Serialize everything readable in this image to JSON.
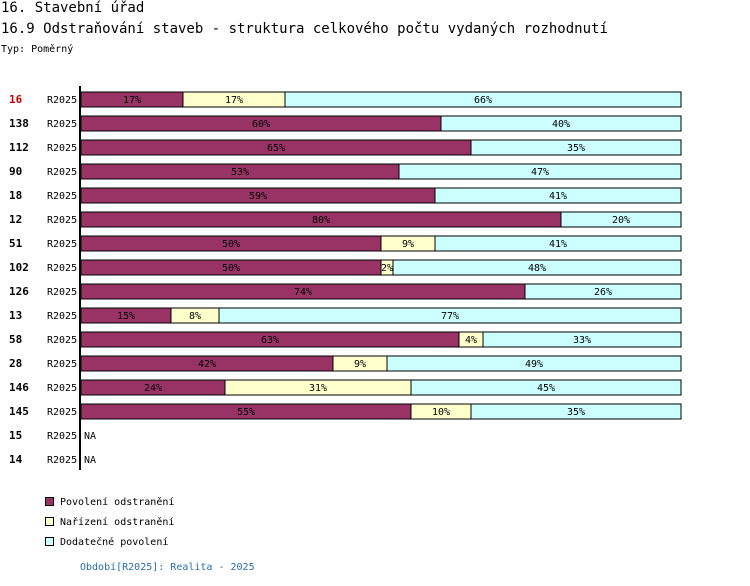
{
  "header": {
    "title": "16. Stavební úřad",
    "subtitle": "16.9 Odstraňování staveb - struktura celkového počtu vydaných rozhodnutí",
    "type_label": "Typ: Poměrný"
  },
  "colors": {
    "povoleni": "#993366",
    "narizeni": "#ffffcc",
    "dodatecne": "#ccffff",
    "highlight": "#cc0000",
    "footer": "#2a6db0"
  },
  "chart_data": {
    "type": "bar",
    "orientation": "horizontal",
    "stacked": true,
    "normalized_percent": true,
    "series_names": [
      "Povolení odstranění",
      "Nařízení odstranění",
      "Dodatečné povolení"
    ],
    "rows": [
      {
        "label": "16",
        "period": "R2025",
        "highlight": true,
        "values": [
          17,
          17,
          66
        ]
      },
      {
        "label": "138",
        "period": "R2025",
        "highlight": false,
        "values": [
          60,
          0,
          40
        ]
      },
      {
        "label": "112",
        "period": "R2025",
        "highlight": false,
        "values": [
          65,
          0,
          35
        ]
      },
      {
        "label": "90",
        "period": "R2025",
        "highlight": false,
        "values": [
          53,
          0,
          47
        ]
      },
      {
        "label": "18",
        "period": "R2025",
        "highlight": false,
        "values": [
          59,
          0,
          41
        ]
      },
      {
        "label": "12",
        "period": "R2025",
        "highlight": false,
        "values": [
          80,
          0,
          20
        ]
      },
      {
        "label": "51",
        "period": "R2025",
        "highlight": false,
        "values": [
          50,
          9,
          41
        ]
      },
      {
        "label": "102",
        "period": "R2025",
        "highlight": false,
        "values": [
          50,
          2,
          48
        ]
      },
      {
        "label": "126",
        "period": "R2025",
        "highlight": false,
        "values": [
          74,
          0,
          26
        ]
      },
      {
        "label": "13",
        "period": "R2025",
        "highlight": false,
        "values": [
          15,
          8,
          77
        ]
      },
      {
        "label": "58",
        "period": "R2025",
        "highlight": false,
        "values": [
          63,
          4,
          33
        ]
      },
      {
        "label": "28",
        "period": "R2025",
        "highlight": false,
        "values": [
          42,
          9,
          49
        ]
      },
      {
        "label": "146",
        "period": "R2025",
        "highlight": false,
        "values": [
          24,
          31,
          45
        ]
      },
      {
        "label": "145",
        "period": "R2025",
        "highlight": false,
        "values": [
          55,
          10,
          35
        ]
      },
      {
        "label": "15",
        "period": "R2025",
        "highlight": false,
        "values": null
      },
      {
        "label": "14",
        "period": "R2025",
        "highlight": false,
        "values": null
      }
    ],
    "na_label": "NA",
    "value_suffix": "%",
    "xlim": [
      0,
      100
    ]
  },
  "legend": {
    "items": [
      {
        "label": "Povolení odstranění"
      },
      {
        "label": "Nařízení odstranění"
      },
      {
        "label": "Dodatečné povolení"
      }
    ]
  },
  "footer": {
    "text": "Období[R2025]: Realita - 2025"
  }
}
